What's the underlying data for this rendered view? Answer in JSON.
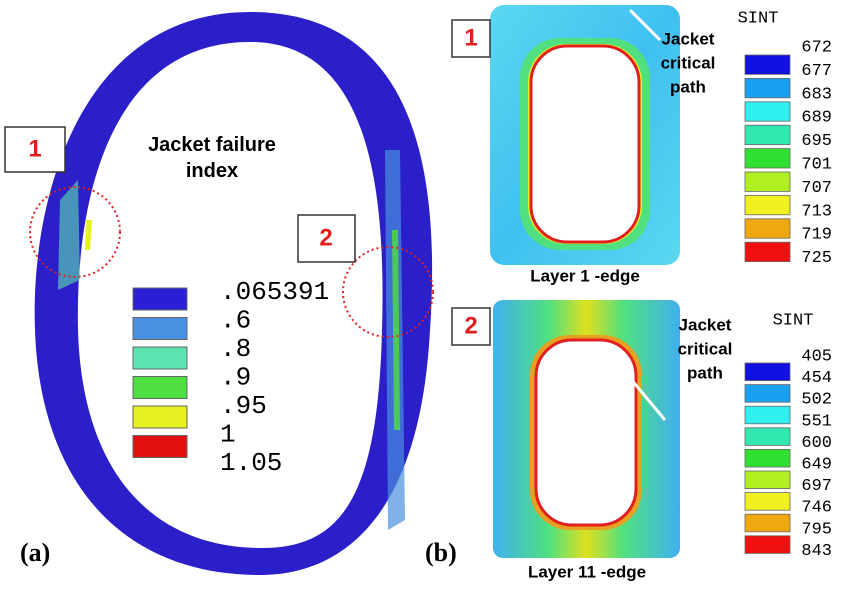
{
  "panel_a": {
    "label": "(a)",
    "title": "Jacket failure index",
    "markers": [
      "1",
      "2"
    ],
    "legend": {
      "colors": [
        "#2b1fd6",
        "#4a90e0",
        "#5de3b0",
        "#4ee040",
        "#e8f020",
        "#e01010"
      ],
      "labels": [
        ".065391",
        ".6",
        ".8",
        ".9",
        ".95",
        "1",
        "1.05"
      ]
    }
  },
  "panel_b": {
    "label": "(b)",
    "views": [
      {
        "marker": "1",
        "caption": "Layer 1 -edge",
        "annotation": [
          "Jacket",
          "critical",
          "path"
        ],
        "legend": {
          "title": "SINT",
          "colors": [
            "#1010e0",
            "#1aa0f0",
            "#30f0f0",
            "#30e8b0",
            "#30e030",
            "#b0f020",
            "#f0f020",
            "#f0a810",
            "#f01010"
          ],
          "labels": [
            "672",
            "677",
            "683",
            "689",
            "695",
            "701",
            "707",
            "713",
            "719",
            "725"
          ]
        }
      },
      {
        "marker": "2",
        "caption": "Layer 11 -edge",
        "annotation": [
          "Jacket",
          "critical",
          "path"
        ],
        "legend": {
          "title": "SINT",
          "colors": [
            "#1010e0",
            "#1aa0f0",
            "#30f0f0",
            "#30e8b0",
            "#30e030",
            "#b0f020",
            "#f0f020",
            "#f0a810",
            "#f01010"
          ],
          "labels": [
            "405",
            "454",
            "502",
            "551",
            "600",
            "649",
            "697",
            "746",
            "795",
            "843"
          ]
        }
      }
    ]
  }
}
